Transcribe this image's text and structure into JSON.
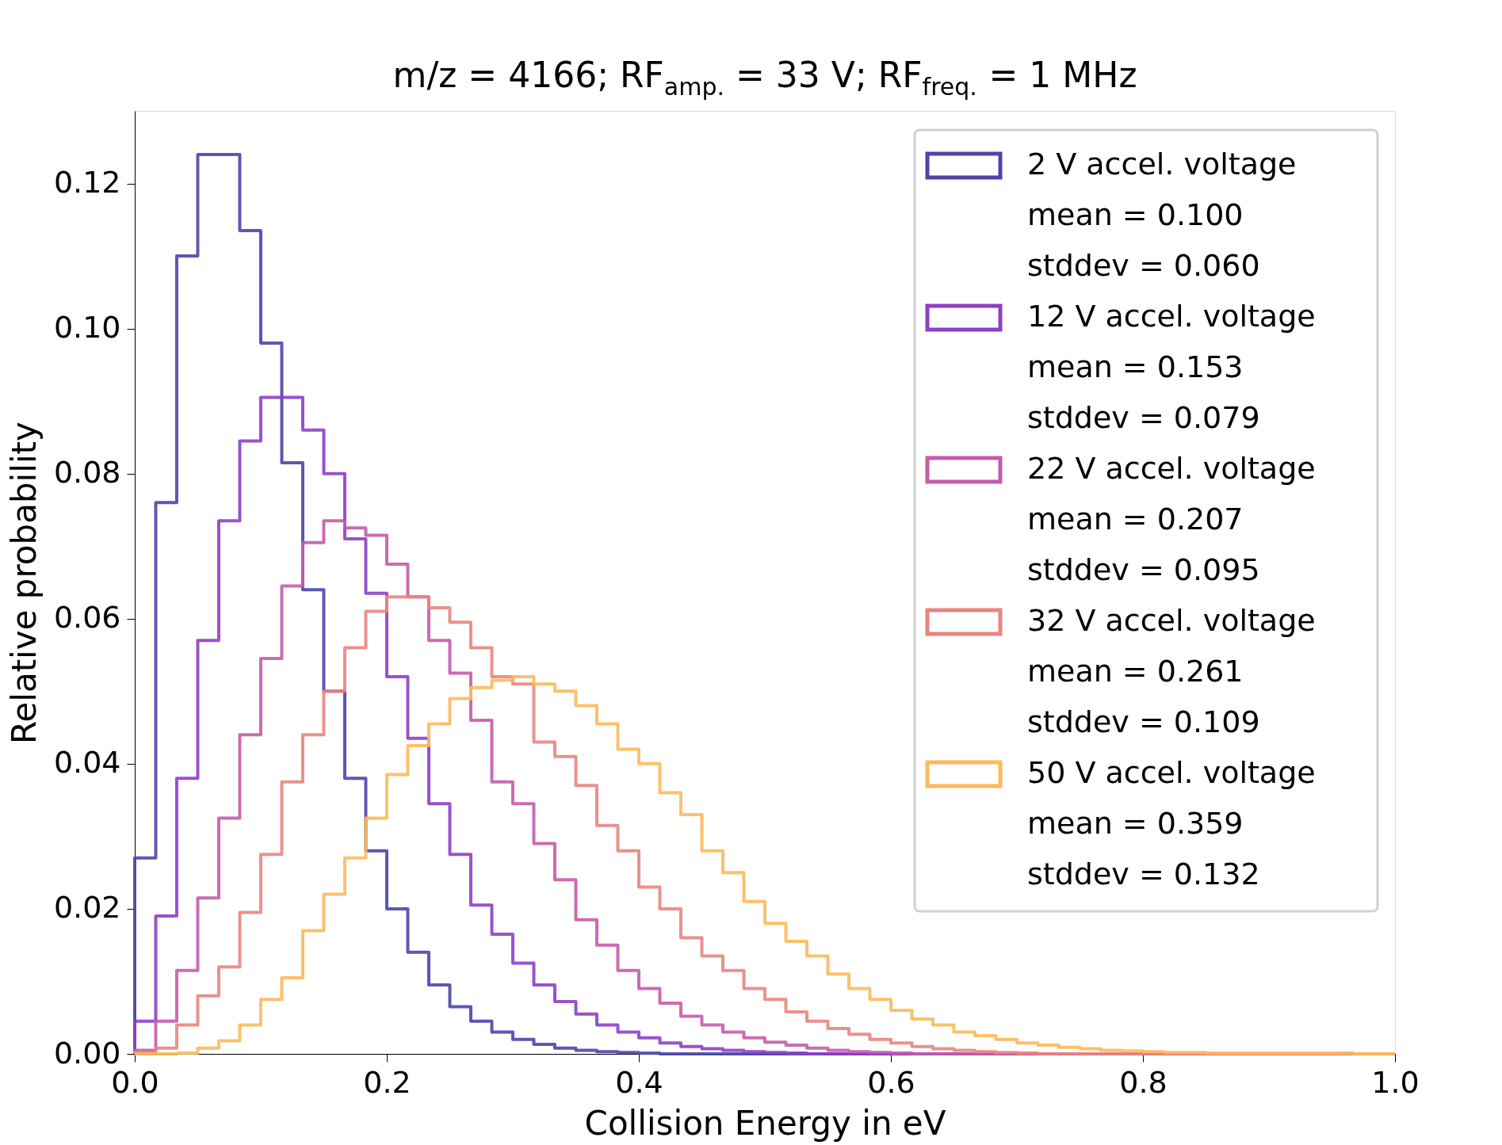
{
  "chart_data": {
    "type": "histogram",
    "title": "m/z = 4166; RF$_{amp.}$ = 33 V; RF$_{freq.}$ = 1 MHz",
    "xlabel": "Collision Energy in eV",
    "ylabel": "Relative probability",
    "bins": [
      0.0,
      0.01667,
      0.03333,
      0.05,
      0.06667,
      0.08333,
      0.1,
      0.11667,
      0.13333,
      0.15,
      0.16667,
      0.18333,
      0.2,
      0.21667,
      0.23333,
      0.25,
      0.26667,
      0.28333,
      0.3,
      0.31667,
      0.33333,
      0.35,
      0.36667,
      0.38333,
      0.4,
      0.41667,
      0.43333,
      0.45,
      0.46667,
      0.48333,
      0.5,
      0.51667,
      0.53333,
      0.55,
      0.56667,
      0.58333,
      0.6,
      0.61667,
      0.63333,
      0.65,
      0.66667,
      0.68333,
      0.7,
      0.71667,
      0.73333,
      0.75,
      0.76667,
      0.78333,
      0.8,
      0.81667,
      0.83333,
      0.85,
      0.86667,
      0.88333,
      0.9,
      0.91667,
      0.93333,
      0.95,
      0.96667,
      0.98333,
      1.0
    ],
    "series": [
      {
        "name": "2 V accel. voltage\nmean = 0.100\nstddev = 0.060",
        "color": "#4b45aa",
        "values": [
          0.027,
          0.076,
          0.11,
          0.124,
          0.124,
          0.1135,
          0.098,
          0.0815,
          0.064,
          0.05,
          0.038,
          0.028,
          0.02,
          0.014,
          0.0095,
          0.0065,
          0.0045,
          0.003,
          0.002,
          0.0013,
          0.0008,
          0.0005,
          0.0003,
          0.0002,
          0.0001,
          0,
          0,
          0,
          0,
          0,
          0,
          0,
          0,
          0,
          0,
          0,
          0,
          0,
          0,
          0,
          0,
          0,
          0,
          0,
          0,
          0,
          0,
          0,
          0,
          0,
          0,
          0,
          0,
          0,
          0,
          0,
          0,
          0,
          0,
          0
        ]
      },
      {
        "name": "12 V accel. voltage\nmean = 0.153\nstddev = 0.079",
        "color": "#8e3fc6",
        "values": [
          0.0045,
          0.019,
          0.038,
          0.057,
          0.0735,
          0.0845,
          0.0905,
          0.0905,
          0.086,
          0.08,
          0.071,
          0.0635,
          0.052,
          0.0435,
          0.0345,
          0.0275,
          0.0205,
          0.0165,
          0.0125,
          0.0095,
          0.0072,
          0.0055,
          0.004,
          0.003,
          0.0022,
          0.0015,
          0.001,
          0.0007,
          0.0005,
          0.0003,
          0.0002,
          0.0001,
          0,
          0,
          0,
          0,
          0,
          0,
          0,
          0,
          0,
          0,
          0,
          0,
          0,
          0,
          0,
          0,
          0,
          0,
          0,
          0,
          0,
          0,
          0,
          0,
          0,
          0,
          0,
          0
        ]
      },
      {
        "name": "22 V accel. voltage\nmean = 0.207\nstddev = 0.095",
        "color": "#c45cab",
        "values": [
          0.0005,
          0.0045,
          0.0115,
          0.0215,
          0.0325,
          0.044,
          0.0545,
          0.0645,
          0.0705,
          0.0735,
          0.0725,
          0.0715,
          0.0675,
          0.063,
          0.057,
          0.0525,
          0.046,
          0.0375,
          0.0345,
          0.029,
          0.024,
          0.0185,
          0.015,
          0.0115,
          0.009,
          0.007,
          0.0052,
          0.004,
          0.003,
          0.0022,
          0.0016,
          0.0012,
          0.0008,
          0.0005,
          0.0003,
          0.0002,
          0.0001,
          0,
          0,
          0,
          0,
          0,
          0,
          0,
          0,
          0,
          0,
          0,
          0,
          0,
          0,
          0,
          0,
          0,
          0,
          0,
          0,
          0,
          0,
          0
        ]
      },
      {
        "name": "32 V accel. voltage\nmean = 0.261\nstddev = 0.109",
        "color": "#e8857f",
        "values": [
          0.0002,
          0.0008,
          0.004,
          0.008,
          0.012,
          0.0195,
          0.0275,
          0.0375,
          0.044,
          0.05,
          0.056,
          0.061,
          0.063,
          0.063,
          0.0615,
          0.0595,
          0.056,
          0.052,
          0.051,
          0.043,
          0.041,
          0.037,
          0.0315,
          0.028,
          0.023,
          0.02,
          0.016,
          0.0135,
          0.0115,
          0.009,
          0.0075,
          0.0058,
          0.0045,
          0.0035,
          0.0027,
          0.002,
          0.0015,
          0.001,
          0.0007,
          0.0005,
          0.0003,
          0.0002,
          0.0001,
          0,
          0,
          0,
          0,
          0,
          0,
          0,
          0,
          0,
          0,
          0,
          0,
          0,
          0,
          0,
          0,
          0
        ]
      },
      {
        "name": "50 V accel. voltage\nmean = 0.359\nstddev = 0.132",
        "color": "#fdb95a",
        "values": [
          0,
          0,
          0.0001,
          0.0008,
          0.0018,
          0.004,
          0.0075,
          0.0105,
          0.017,
          0.022,
          0.027,
          0.0325,
          0.0385,
          0.0425,
          0.0455,
          0.049,
          0.0505,
          0.0515,
          0.052,
          0.051,
          0.05,
          0.048,
          0.0455,
          0.042,
          0.04,
          0.036,
          0.033,
          0.028,
          0.025,
          0.021,
          0.018,
          0.0155,
          0.0135,
          0.011,
          0.009,
          0.0075,
          0.006,
          0.0048,
          0.004,
          0.003,
          0.0025,
          0.002,
          0.0015,
          0.0012,
          0.0009,
          0.0007,
          0.0005,
          0.0004,
          0.0003,
          0.0002,
          0.0002,
          0.0001,
          0.0001,
          0.0001,
          0.0001,
          0.0001,
          0.0001,
          0.0001,
          0,
          0
        ]
      }
    ],
    "xlim": [
      0.0,
      1.0
    ],
    "xticks": [
      {
        "value": 0.0,
        "label": "0.0"
      },
      0.2,
      0.4,
      0.6,
      0.8,
      {
        "value": 1.0,
        "label": "1.0"
      }
    ],
    "ylim": [
      0.0,
      0.13
    ],
    "yticks": [
      {
        "value": 0.0,
        "label": "0.00"
      },
      {
        "value": 0.02,
        "label": "0.02"
      },
      {
        "value": 0.04,
        "label": "0.04"
      },
      {
        "value": 0.06,
        "label": "0.06"
      },
      {
        "value": 0.08,
        "label": "0.08"
      },
      {
        "value": 0.1,
        "label": "0.10"
      },
      {
        "value": 0.12,
        "label": "0.12"
      }
    ],
    "grid": false,
    "legend": "top right"
  }
}
